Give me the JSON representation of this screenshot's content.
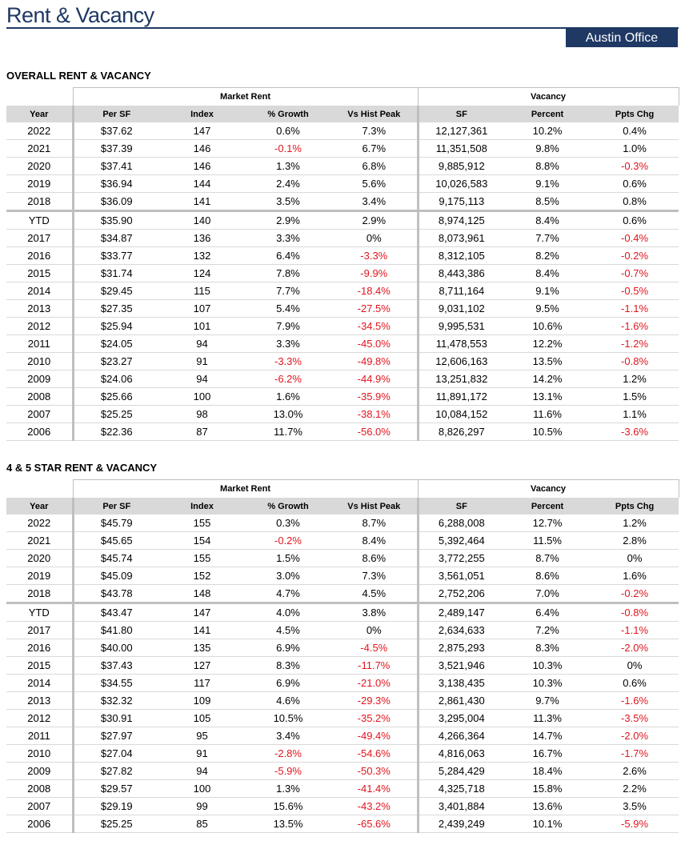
{
  "header": {
    "title": "Rent & Vacancy",
    "office": "Austin Office"
  },
  "columns": {
    "group_market_rent": "Market Rent",
    "group_vacancy": "Vacancy",
    "labels": [
      "Year",
      "Per SF",
      "Index",
      "% Growth",
      "Vs Hist Peak",
      "SF",
      "Percent",
      "Ppts Chg"
    ]
  },
  "sections": [
    {
      "title": "OVERALL RENT & VACANCY",
      "rows": [
        [
          "2022",
          "$37.62",
          "147",
          "0.6%",
          "7.3%",
          "12,127,361",
          "10.2%",
          "0.4%"
        ],
        [
          "2021",
          "$37.39",
          "146",
          "-0.1%",
          "6.7%",
          "11,351,508",
          "9.8%",
          "1.0%"
        ],
        [
          "2020",
          "$37.41",
          "146",
          "1.3%",
          "6.8%",
          "9,885,912",
          "8.8%",
          "-0.3%"
        ],
        [
          "2019",
          "$36.94",
          "144",
          "2.4%",
          "5.6%",
          "10,026,583",
          "9.1%",
          "0.6%"
        ],
        [
          "2018",
          "$36.09",
          "141",
          "3.5%",
          "3.4%",
          "9,175,113",
          "8.5%",
          "0.8%"
        ],
        [
          "YTD",
          "$35.90",
          "140",
          "2.9%",
          "2.9%",
          "8,974,125",
          "8.4%",
          "0.6%"
        ],
        [
          "2017",
          "$34.87",
          "136",
          "3.3%",
          "0%",
          "8,073,961",
          "7.7%",
          "-0.4%"
        ],
        [
          "2016",
          "$33.77",
          "132",
          "6.4%",
          "-3.3%",
          "8,312,105",
          "8.2%",
          "-0.2%"
        ],
        [
          "2015",
          "$31.74",
          "124",
          "7.8%",
          "-9.9%",
          "8,443,386",
          "8.4%",
          "-0.7%"
        ],
        [
          "2014",
          "$29.45",
          "115",
          "7.7%",
          "-18.4%",
          "8,711,164",
          "9.1%",
          "-0.5%"
        ],
        [
          "2013",
          "$27.35",
          "107",
          "5.4%",
          "-27.5%",
          "9,031,102",
          "9.5%",
          "-1.1%"
        ],
        [
          "2012",
          "$25.94",
          "101",
          "7.9%",
          "-34.5%",
          "9,995,531",
          "10.6%",
          "-1.6%"
        ],
        [
          "2011",
          "$24.05",
          "94",
          "3.3%",
          "-45.0%",
          "11,478,553",
          "12.2%",
          "-1.2%"
        ],
        [
          "2010",
          "$23.27",
          "91",
          "-3.3%",
          "-49.8%",
          "12,606,163",
          "13.5%",
          "-0.8%"
        ],
        [
          "2009",
          "$24.06",
          "94",
          "-6.2%",
          "-44.9%",
          "13,251,832",
          "14.2%",
          "1.2%"
        ],
        [
          "2008",
          "$25.66",
          "100",
          "1.6%",
          "-35.9%",
          "11,891,172",
          "13.1%",
          "1.5%"
        ],
        [
          "2007",
          "$25.25",
          "98",
          "13.0%",
          "-38.1%",
          "10,084,152",
          "11.6%",
          "1.1%"
        ],
        [
          "2006",
          "$22.36",
          "87",
          "11.7%",
          "-56.0%",
          "8,826,297",
          "10.5%",
          "-3.6%"
        ]
      ]
    },
    {
      "title": "4 & 5 STAR RENT & VACANCY",
      "rows": [
        [
          "2022",
          "$45.79",
          "155",
          "0.3%",
          "8.7%",
          "6,288,008",
          "12.7%",
          "1.2%"
        ],
        [
          "2021",
          "$45.65",
          "154",
          "-0.2%",
          "8.4%",
          "5,392,464",
          "11.5%",
          "2.8%"
        ],
        [
          "2020",
          "$45.74",
          "155",
          "1.5%",
          "8.6%",
          "3,772,255",
          "8.7%",
          "0%"
        ],
        [
          "2019",
          "$45.09",
          "152",
          "3.0%",
          "7.3%",
          "3,561,051",
          "8.6%",
          "1.6%"
        ],
        [
          "2018",
          "$43.78",
          "148",
          "4.7%",
          "4.5%",
          "2,752,206",
          "7.0%",
          "-0.2%"
        ],
        [
          "YTD",
          "$43.47",
          "147",
          "4.0%",
          "3.8%",
          "2,489,147",
          "6.4%",
          "-0.8%"
        ],
        [
          "2017",
          "$41.80",
          "141",
          "4.5%",
          "0%",
          "2,634,633",
          "7.2%",
          "-1.1%"
        ],
        [
          "2016",
          "$40.00",
          "135",
          "6.9%",
          "-4.5%",
          "2,875,293",
          "8.3%",
          "-2.0%"
        ],
        [
          "2015",
          "$37.43",
          "127",
          "8.3%",
          "-11.7%",
          "3,521,946",
          "10.3%",
          "0%"
        ],
        [
          "2014",
          "$34.55",
          "117",
          "6.9%",
          "-21.0%",
          "3,138,435",
          "10.3%",
          "0.6%"
        ],
        [
          "2013",
          "$32.32",
          "109",
          "4.6%",
          "-29.3%",
          "2,861,430",
          "9.7%",
          "-1.6%"
        ],
        [
          "2012",
          "$30.91",
          "105",
          "10.5%",
          "-35.2%",
          "3,295,004",
          "11.3%",
          "-3.5%"
        ],
        [
          "2011",
          "$27.97",
          "95",
          "3.4%",
          "-49.4%",
          "4,266,364",
          "14.7%",
          "-2.0%"
        ],
        [
          "2010",
          "$27.04",
          "91",
          "-2.8%",
          "-54.6%",
          "4,816,063",
          "16.7%",
          "-1.7%"
        ],
        [
          "2009",
          "$27.82",
          "94",
          "-5.9%",
          "-50.3%",
          "5,284,429",
          "18.4%",
          "2.6%"
        ],
        [
          "2008",
          "$29.57",
          "100",
          "1.3%",
          "-41.4%",
          "4,325,718",
          "15.8%",
          "2.2%"
        ],
        [
          "2007",
          "$29.19",
          "99",
          "15.6%",
          "-43.2%",
          "3,401,884",
          "13.6%",
          "3.5%"
        ],
        [
          "2006",
          "$25.25",
          "85",
          "13.5%",
          "-65.6%",
          "2,439,249",
          "10.1%",
          "-5.9%"
        ]
      ]
    }
  ],
  "colors": {
    "brand_navy": "#1f3864",
    "negative": "#e1151e",
    "header_fill": "#d9d9d9",
    "divider": "#bfbfbf"
  }
}
